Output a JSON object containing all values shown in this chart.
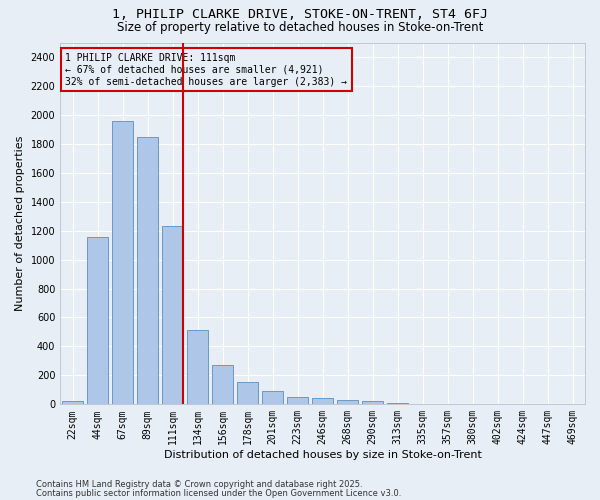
{
  "title1": "1, PHILIP CLARKE DRIVE, STOKE-ON-TRENT, ST4 6FJ",
  "title2": "Size of property relative to detached houses in Stoke-on-Trent",
  "xlabel": "Distribution of detached houses by size in Stoke-on-Trent",
  "ylabel": "Number of detached properties",
  "categories": [
    "22sqm",
    "44sqm",
    "67sqm",
    "89sqm",
    "111sqm",
    "134sqm",
    "156sqm",
    "178sqm",
    "201sqm",
    "223sqm",
    "246sqm",
    "268sqm",
    "290sqm",
    "313sqm",
    "335sqm",
    "357sqm",
    "380sqm",
    "402sqm",
    "424sqm",
    "447sqm",
    "469sqm"
  ],
  "values": [
    25,
    1155,
    1960,
    1850,
    1230,
    515,
    275,
    155,
    90,
    50,
    42,
    30,
    20,
    10,
    5,
    3,
    2,
    1,
    0,
    0,
    0
  ],
  "bar_color": "#aec6e8",
  "bar_edge_color": "#5a8fc0",
  "vline_color": "#cc0000",
  "vline_x_index": 4,
  "annotation_text": "1 PHILIP CLARKE DRIVE: 111sqm\n← 67% of detached houses are smaller (4,921)\n32% of semi-detached houses are larger (2,383) →",
  "annotation_box_color": "#cc0000",
  "ylim": [
    0,
    2500
  ],
  "yticks": [
    0,
    200,
    400,
    600,
    800,
    1000,
    1200,
    1400,
    1600,
    1800,
    2000,
    2200,
    2400
  ],
  "background_color": "#e8eef5",
  "grid_color": "#ffffff",
  "footer1": "Contains HM Land Registry data © Crown copyright and database right 2025.",
  "footer2": "Contains public sector information licensed under the Open Government Licence v3.0.",
  "title_fontsize": 9.5,
  "subtitle_fontsize": 8.5,
  "axis_label_fontsize": 8,
  "tick_fontsize": 7,
  "annotation_fontsize": 7,
  "footer_fontsize": 6
}
